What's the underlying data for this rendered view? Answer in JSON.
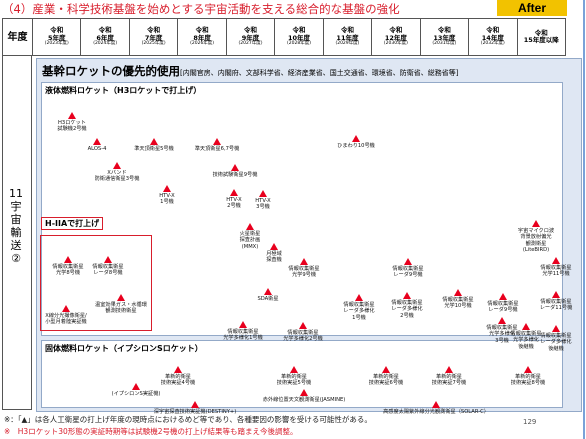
{
  "title": "（4）産業・科学技術基盤を始めとする宇宙活動を支える総合的な基盤の強化",
  "after_label": "After",
  "year_header": "年度",
  "years": [
    {
      "era": "令和",
      "n": "5年度",
      "g": "(2023年度)"
    },
    {
      "era": "令和",
      "n": "6年度",
      "g": "(2024年度)"
    },
    {
      "era": "令和",
      "n": "7年度",
      "g": "(2025年度)"
    },
    {
      "era": "令和",
      "n": "8年度",
      "g": "(2026年度)"
    },
    {
      "era": "令和",
      "n": "9年度",
      "g": "(2027年度)"
    },
    {
      "era": "令和",
      "n": "10年度",
      "g": "(2028年度)"
    },
    {
      "era": "令和",
      "n": "11年度",
      "g": "(2029年度)"
    },
    {
      "era": "令和",
      "n": "12年度",
      "g": "(2030年度)"
    },
    {
      "era": "令和",
      "n": "13年度",
      "g": "(2031年度)"
    },
    {
      "era": "令和",
      "n": "14年度",
      "g": "(2032年度)"
    },
    {
      "era": "令和",
      "n": "15年度以降",
      "g": ""
    }
  ],
  "side_label": {
    "num": "11",
    "text": "宇宙輸送②"
  },
  "main_heading": "基幹ロケットの優先的使用",
  "main_heading_sub": "[内閣官房、内閣府、文部科学省、経済産業省、国土交通省、環境省、防衛省、総務省等]",
  "liquid_title": "液体燃料ロケット（H3ロケットで打上げ）",
  "solid_title": "固体燃料ロケット（イプシロンSロケット）",
  "h2a_label": "H-IIAで打上げ",
  "satellites": [
    {
      "label": "H3ロケット\n試験機2号機"
    },
    {
      "label": "ALOS-4"
    },
    {
      "label": "準天頂衛星5号機"
    },
    {
      "label": "準天頂衛星6,7号機"
    },
    {
      "label": "ひまわり10号機"
    },
    {
      "label": "Xバンド\n防衛通信衛星3号機"
    },
    {
      "label": "技術試験衛星9号機"
    },
    {
      "label": "HTV-X\n1号機"
    },
    {
      "label": "HTV-X\n2号機"
    },
    {
      "label": "HTV-X\n3号機"
    },
    {
      "label": "情報収集衛星\n光学8号機"
    },
    {
      "label": "情報収集衛星\nレーダ8号機"
    },
    {
      "label": "温室効果ガス・水循環\n観測技術衛星"
    },
    {
      "label": "X線分光撮像衛星/\n小型月着陸実証機"
    },
    {
      "label": "火星衛星\n探査計画\n(MMX)"
    },
    {
      "label": "月極域\n探査機"
    },
    {
      "label": "情報収集衛星\n光学9号機"
    },
    {
      "label": "情報収集衛星\nレーダ9号機"
    },
    {
      "label": "宇宙マイクロ波\n背景放射偏光\n観測衛星\n(LiteBIRD)"
    },
    {
      "label": "情報収集衛星\n光学11号機"
    },
    {
      "label": "SDA衛星"
    },
    {
      "label": "情報収集衛星\nレーダ多様化\n1号機"
    },
    {
      "label": "情報収集衛星\nレーダ多様化\n2号機"
    },
    {
      "label": "情報収集衛星\n光学10号機"
    },
    {
      "label": "情報収集衛星\nレーダ9号機"
    },
    {
      "label": "情報収集衛星\nレーダ11号機"
    },
    {
      "label": "情報収集衛星\n光学多様化1号機"
    },
    {
      "label": "情報収集衛星\n光学多様化2号機"
    },
    {
      "label": "情報収集衛星\n光学多様化\n3号機"
    },
    {
      "label": "情報収集衛星\n光学多様化\n後継機"
    },
    {
      "label": "情報収集衛星\nレーダ多様化\n後継機"
    },
    {
      "label": "革新的衛星\n技術実証4号機"
    },
    {
      "label": "(イプシロンS実証機)"
    },
    {
      "label": "革新的衛星\n技術実証5号機"
    },
    {
      "label": "赤外線位置天文観測衛星(JASMINE)"
    },
    {
      "label": "革新的衛星\n技術実証6号機"
    },
    {
      "label": "革新的衛星\n技術実証7号機"
    },
    {
      "label": "革新的衛星\n技術実証8号機"
    },
    {
      "label": "深宇宙探査技術実証機(DESTINY+)"
    },
    {
      "label": "高感度太陽紫外線分光観測衛星（SOLAR-C）"
    }
  ],
  "notes": [
    "※：「▲」は各人工衛星の打上げ年度の現時点におけるめど等であり、各種要因の影響を受ける可能性がある。",
    "※　H3ロケット30形態の実証時期等は試験機2号機の打上げ結果等も踏まえ今後調整。"
  ],
  "page_number": "129"
}
